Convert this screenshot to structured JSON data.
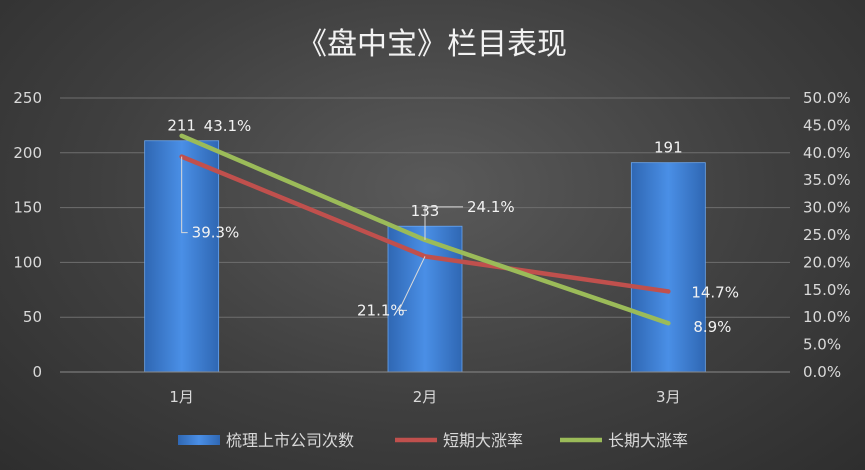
{
  "chart_data": {
    "type": "bar",
    "title": "《盘中宝》栏目表现",
    "categories": [
      "1月",
      "2月",
      "3月"
    ],
    "series": [
      {
        "name": "梳理上市公司次数",
        "kind": "bar",
        "axis": "left",
        "values": [
          211,
          133,
          191
        ],
        "labels": [
          "211",
          "133",
          "191"
        ],
        "color": "#3a7fd5"
      },
      {
        "name": "短期大涨率",
        "kind": "line",
        "axis": "right",
        "values": [
          39.3,
          21.1,
          14.7
        ],
        "labels": [
          "39.3%",
          "21.1%",
          "14.7%"
        ],
        "color": "#c0504d"
      },
      {
        "name": "长期大涨率",
        "kind": "line",
        "axis": "right",
        "values": [
          43.1,
          24.1,
          8.9
        ],
        "labels": [
          "43.1%",
          "24.1%",
          "8.9%"
        ],
        "color": "#9bbb59"
      }
    ],
    "y_left": {
      "min": 0,
      "max": 250,
      "ticks": [
        "0",
        "50",
        "100",
        "150",
        "200",
        "250"
      ]
    },
    "y_right": {
      "min": 0,
      "max": 50,
      "ticks": [
        "0.0%",
        "5.0%",
        "10.0%",
        "15.0%",
        "20.0%",
        "25.0%",
        "30.0%",
        "35.0%",
        "40.0%",
        "45.0%",
        "50.0%"
      ]
    },
    "grid": true,
    "legend": "bottom",
    "gridColor": "#6e6e6e",
    "leaderColor": "#d9d9d9"
  }
}
